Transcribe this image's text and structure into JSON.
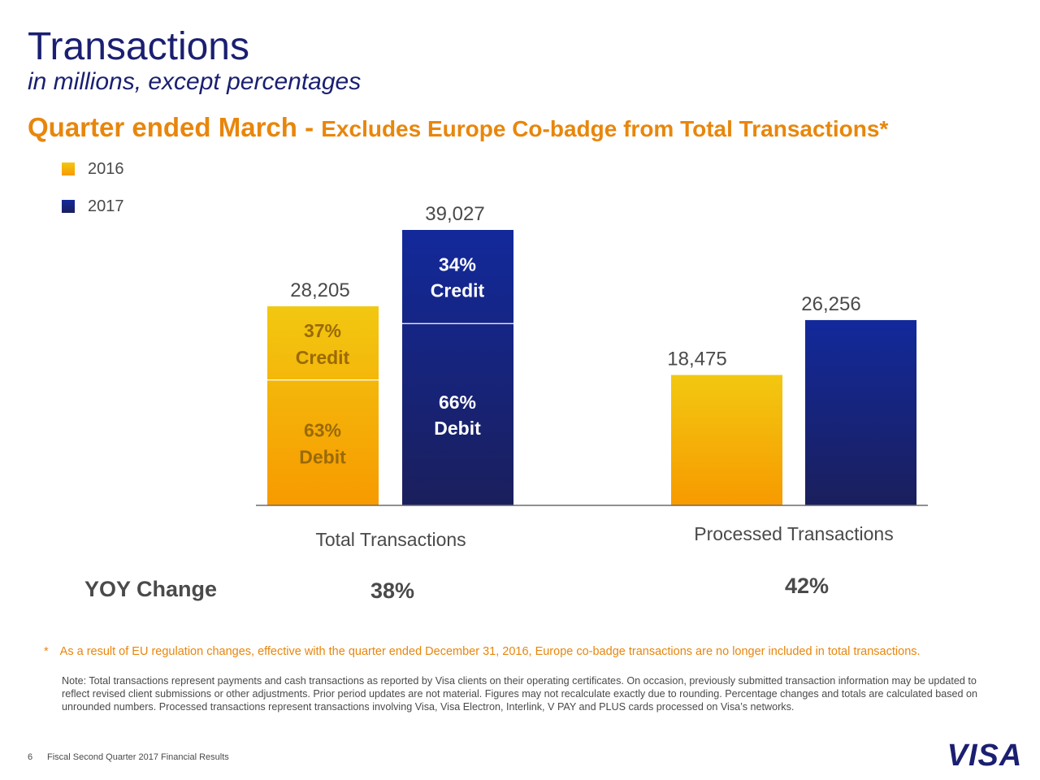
{
  "title": "Transactions",
  "subtitle": "in millions, except percentages",
  "headline": {
    "main": "Quarter ended March - ",
    "note": "Excludes Europe Co-badge from Total Transactions*"
  },
  "colors": {
    "title_blue": "#1a1f71",
    "accent_orange": "#e8860c",
    "bar_2016_top": "#f2c811",
    "bar_2016_bottom": "#f79a00",
    "bar_2017_top": "#13299b",
    "bar_2017_bottom": "#1a1f5c",
    "label_gold": "#9a6a06",
    "text_gray": "#4a4a4a"
  },
  "chart_data": {
    "type": "bar",
    "stacked_first_group": true,
    "categories": [
      "Total Transactions",
      "Processed Transactions"
    ],
    "legend_position": "top-left",
    "series": [
      {
        "name": "2016",
        "values": [
          28205,
          18475
        ],
        "value_labels": [
          "28,205",
          "18,475"
        ]
      },
      {
        "name": "2017",
        "values": [
          39027,
          26256
        ],
        "value_labels": [
          "39,027",
          "26,256"
        ]
      }
    ],
    "breakdown_total_transactions": {
      "2016": {
        "credit_pct": "37%",
        "credit_label": "Credit",
        "debit_pct": "63%",
        "debit_label": "Debit",
        "credit_share": 0.37
      },
      "2017": {
        "credit_pct": "34%",
        "credit_label": "Credit",
        "debit_pct": "66%",
        "debit_label": "Debit",
        "credit_share": 0.34
      }
    },
    "ylim": [
      0,
      39027
    ],
    "grid": false
  },
  "yoy": {
    "label": "YOY Change",
    "total_transactions": "38%",
    "processed_transactions": "42%"
  },
  "footnote": {
    "marker": "*",
    "text": "As a result of EU regulation changes, effective with the quarter ended December 31, 2016, Europe co-badge transactions are no longer included in total transactions."
  },
  "note": "Note: Total transactions represent payments and cash transactions as reported by Visa clients on their operating certificates. On occasion, previously submitted transaction information may be updated to reflect revised client submissions or other adjustments. Prior period updates are not material. Figures may not recalculate exactly due to rounding. Percentage changes and totals are calculated based on unrounded numbers. Processed transactions represent transactions involving Visa, Visa Electron, Interlink, V PAY and PLUS cards processed on Visa’s networks.",
  "footer": {
    "page_number": "6",
    "title": "Fiscal Second Quarter 2017 Financial Results",
    "logo_text": "VISA"
  }
}
